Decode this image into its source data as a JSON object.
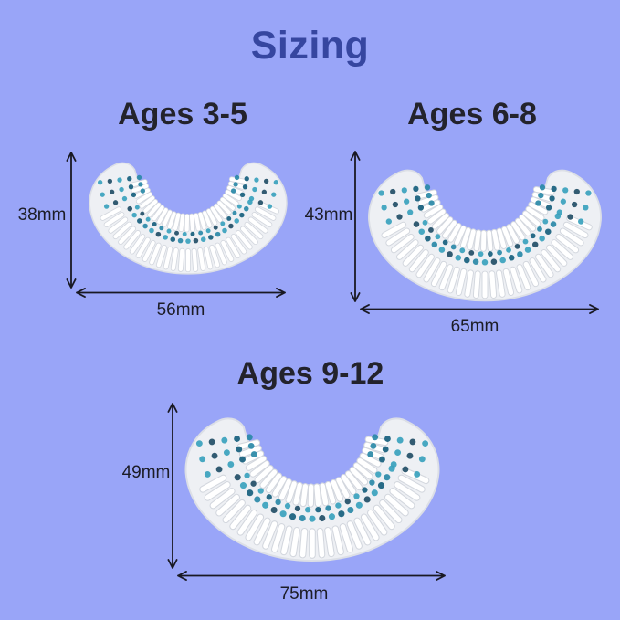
{
  "title": "Sizing",
  "colors": {
    "background": "#99a5f8",
    "title_text": "#3646a0",
    "heading_text": "#23232c",
    "dimension_text": "#1c1c26",
    "arrow": "#191923",
    "silicone_body": "#eef0f4",
    "silicone_edge": "#dcdfe6",
    "bristle": "#ffffff",
    "bristle_shadow": "#d3d7de",
    "dot_teal": "#3aa2bd",
    "dot_dark_teal": "#175f7d"
  },
  "icons": {
    "dimension_arrow": "double-headed-arrow",
    "mouthpiece": "u-shaped-silicone-toothbrush-head"
  },
  "sizes": [
    {
      "label": "Ages 3-5",
      "height_label": "38mm",
      "width_label": "56mm"
    },
    {
      "label": "Ages 6-8",
      "height_label": "43mm",
      "width_label": "65mm"
    },
    {
      "label": "Ages 9-12",
      "height_label": "49mm",
      "width_label": "75mm"
    }
  ]
}
